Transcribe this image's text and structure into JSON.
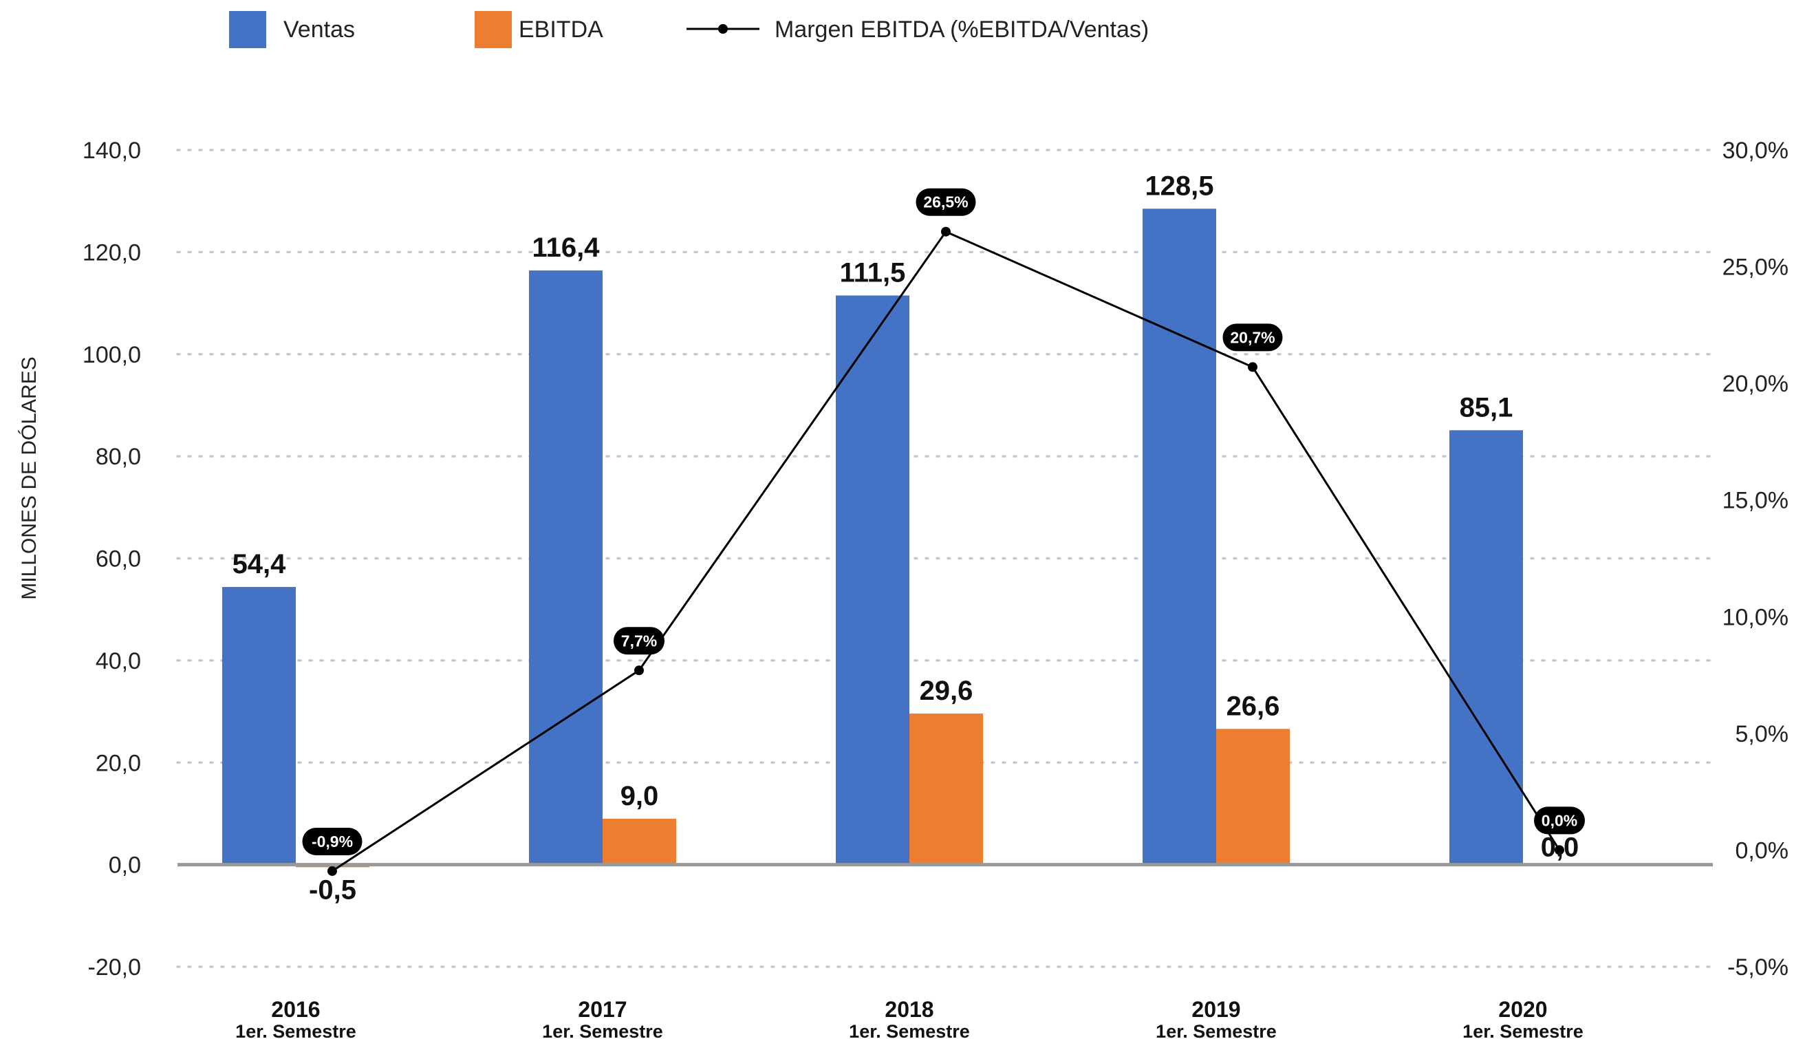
{
  "chart_data": {
    "type": "bar",
    "categories": [
      "2016",
      "2017",
      "2018",
      "2019",
      "2020"
    ],
    "category_sublabels": [
      "1er. Semestre",
      "1er. Semestre",
      "1er. Semestre",
      "1er. Semestre",
      "1er. Semestre"
    ],
    "series": [
      {
        "name": "Ventas",
        "type": "bar",
        "axis": "left",
        "color": "#4472C4",
        "values": [
          54.4,
          116.4,
          111.5,
          128.5,
          85.1
        ],
        "labels": [
          "54,4",
          "116,4",
          "111,5",
          "128,5",
          "85,1"
        ]
      },
      {
        "name": "EBITDA",
        "type": "bar",
        "axis": "left",
        "color": "#ED7D31",
        "values": [
          -0.5,
          9.0,
          29.6,
          26.6,
          0.0
        ],
        "labels": [
          "-0,5",
          "9,0",
          "29,6",
          "26,6",
          "0,0"
        ]
      },
      {
        "name": "Margen EBITDA (%EBITDA/Ventas)",
        "type": "line",
        "axis": "right",
        "color": "#000000",
        "values": [
          -0.9,
          7.7,
          26.5,
          20.7,
          0.0
        ],
        "labels": [
          "-0,9%",
          "7,7%",
          "26,5%",
          "20,7%",
          "0,0%"
        ]
      }
    ],
    "ylabel": "MILLONES DE DÓLARES",
    "ylim": [
      -20,
      140
    ],
    "yticks": [
      -20,
      0,
      20,
      40,
      60,
      80,
      100,
      120,
      140
    ],
    "ytick_labels": [
      "-20,0",
      "0,0",
      "20,0",
      "40,0",
      "60,0",
      "80,0",
      "100,0",
      "120,0",
      "140,0"
    ],
    "y2lim": [
      -5,
      30
    ],
    "y2ticks": [
      -5,
      0,
      5,
      10,
      15,
      20,
      25,
      30
    ],
    "y2tick_labels": [
      "-5,0%",
      "0,0%",
      "5,0%",
      "10,0%",
      "15,0%",
      "20,0%",
      "25,0%",
      "30,0%"
    ],
    "grid": true,
    "legend_position": "top"
  }
}
